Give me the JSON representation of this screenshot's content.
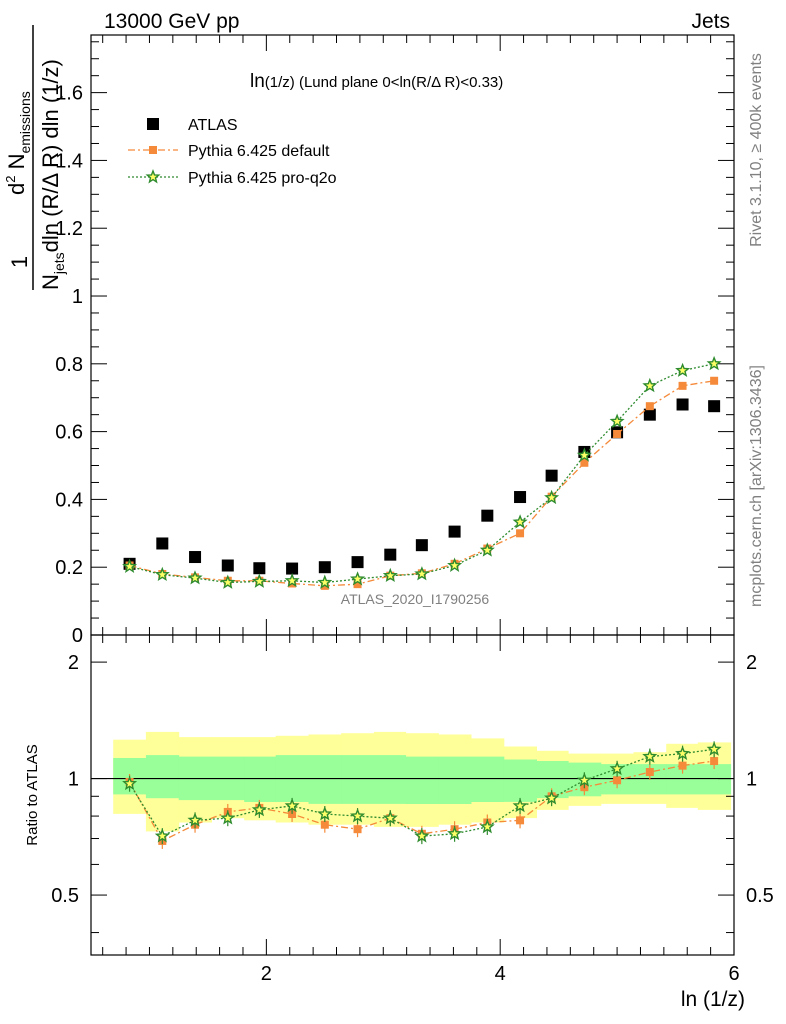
{
  "header": {
    "left": "13000 GeV pp",
    "right": "Jets"
  },
  "side_labels": {
    "rivet": "Rivet 3.1.10, ≥ 400k events",
    "mcplots": "mcplots.cern.ch [arXiv:1306.3436]"
  },
  "watermark": "ATLAS_2020_I1790256",
  "chart_data": [
    {
      "type": "scatter",
      "title": "ln(1/z) (Lund plane 0<ln(R/Δ R)<0.33)",
      "title_parts": {
        "main": "ln",
        "small": "(1/z)",
        "rest": " (Lund plane 0<ln(R/Δ R)<0.33)"
      },
      "ylabel": "1/N_jets d²N_emissions / dln(R/Δ R) dln(1/z)",
      "ylabel_parts": {
        "one": "1",
        "den_main": "N",
        "den_sub": "jets",
        "den_rest": "dln (R/Δ R) dln (1/z)",
        "num_sup": "2",
        "num_main": "d",
        "num_rest": " N",
        "num_sub": "emissions"
      },
      "xlim": [
        0.5,
        6.0
      ],
      "ylim": [
        0.0,
        1.77
      ],
      "y_ticks": [
        0,
        0.2,
        0.4,
        0.6,
        0.8,
        1,
        1.2,
        1.4,
        1.6
      ],
      "y_tick_labels": [
        "0",
        "0.2",
        "0.4",
        "0.6",
        "0.8",
        "1",
        "1.2",
        "1.4",
        "1.6"
      ],
      "legend_position": "top-left",
      "x": [
        0.83,
        1.11,
        1.39,
        1.67,
        1.94,
        2.22,
        2.5,
        2.78,
        3.06,
        3.33,
        3.61,
        3.89,
        4.17,
        4.44,
        4.72,
        5.0,
        5.28,
        5.56,
        5.83
      ],
      "series": [
        {
          "name": "ATLAS",
          "color": "#000000",
          "marker": "square",
          "values": [
            0.21,
            0.27,
            0.23,
            0.205,
            0.197,
            0.196,
            0.2,
            0.215,
            0.237,
            0.265,
            0.305,
            0.352,
            0.407,
            0.47,
            0.54,
            0.598,
            0.65,
            0.68,
            0.675
          ]
        },
        {
          "name": "Pythia 6.425 default",
          "color": "#f58a3a",
          "marker": "circle",
          "values": [
            0.205,
            0.18,
            0.17,
            0.16,
            0.16,
            0.152,
            0.145,
            0.15,
            0.175,
            0.182,
            0.21,
            0.255,
            0.3,
            0.408,
            0.508,
            0.593,
            0.675,
            0.735,
            0.75
          ]
        },
        {
          "name": "Pythia 6.425 pro-q2o",
          "color": "#2e8b2e",
          "marker": "star",
          "values": [
            0.202,
            0.178,
            0.168,
            0.155,
            0.158,
            0.16,
            0.155,
            0.165,
            0.175,
            0.18,
            0.205,
            0.25,
            0.333,
            0.405,
            0.53,
            0.63,
            0.735,
            0.78,
            0.8
          ]
        }
      ]
    },
    {
      "type": "scatter",
      "ylabel": "Ratio to ATLAS",
      "xlabel": "ln (1/z)",
      "xlim": [
        0.5,
        6.0
      ],
      "ylim": [
        0.35,
        2.35
      ],
      "x_ticks": [
        2,
        4,
        6
      ],
      "x_tick_labels": [
        "2",
        "4",
        "6"
      ],
      "y_ticks": [
        0.5,
        1,
        2
      ],
      "y_tick_labels": [
        "0.5",
        "1",
        "2"
      ],
      "reference_line": 1,
      "x": [
        0.83,
        1.11,
        1.39,
        1.67,
        1.94,
        2.22,
        2.5,
        2.78,
        3.06,
        3.33,
        3.61,
        3.89,
        4.17,
        4.44,
        4.72,
        5.0,
        5.28,
        5.56,
        5.83
      ],
      "bin_edges": [
        0.69,
        0.97,
        1.25,
        1.53,
        1.81,
        2.08,
        2.36,
        2.64,
        2.92,
        3.19,
        3.47,
        3.75,
        4.03,
        4.31,
        4.58,
        4.86,
        5.14,
        5.42,
        5.69,
        5.97
      ],
      "bands": [
        {
          "name": "stat band",
          "color": "#99ff99",
          "lower": [
            0.91,
            0.89,
            0.88,
            0.88,
            0.87,
            0.87,
            0.86,
            0.86,
            0.86,
            0.86,
            0.86,
            0.87,
            0.87,
            0.89,
            0.9,
            0.91,
            0.91,
            0.91,
            0.91
          ],
          "upper": [
            1.13,
            1.15,
            1.14,
            1.14,
            1.14,
            1.15,
            1.15,
            1.15,
            1.15,
            1.14,
            1.14,
            1.14,
            1.12,
            1.11,
            1.1,
            1.09,
            1.09,
            1.09,
            1.09
          ]
        },
        {
          "name": "syst band",
          "color": "#ffff99",
          "lower": [
            0.81,
            0.73,
            0.77,
            0.79,
            0.78,
            0.77,
            0.76,
            0.76,
            0.75,
            0.75,
            0.76,
            0.77,
            0.79,
            0.83,
            0.85,
            0.86,
            0.86,
            0.84,
            0.83
          ],
          "upper": [
            1.26,
            1.32,
            1.28,
            1.28,
            1.28,
            1.29,
            1.3,
            1.31,
            1.32,
            1.31,
            1.3,
            1.27,
            1.21,
            1.18,
            1.16,
            1.16,
            1.17,
            1.23,
            1.24
          ]
        }
      ],
      "series": [
        {
          "name": "Pythia 6.425 default",
          "color": "#f58a3a",
          "marker": "circle",
          "values": [
            0.98,
            0.69,
            0.76,
            0.82,
            0.84,
            0.81,
            0.76,
            0.74,
            0.79,
            0.72,
            0.74,
            0.77,
            0.78,
            0.9,
            0.95,
            0.99,
            1.04,
            1.08,
            1.11
          ]
        },
        {
          "name": "Pythia 6.425 pro-q2o",
          "color": "#2e8b2e",
          "marker": "star",
          "values": [
            0.97,
            0.71,
            0.78,
            0.79,
            0.83,
            0.85,
            0.81,
            0.8,
            0.79,
            0.71,
            0.72,
            0.75,
            0.85,
            0.89,
            0.99,
            1.06,
            1.14,
            1.16,
            1.19
          ]
        }
      ]
    }
  ]
}
